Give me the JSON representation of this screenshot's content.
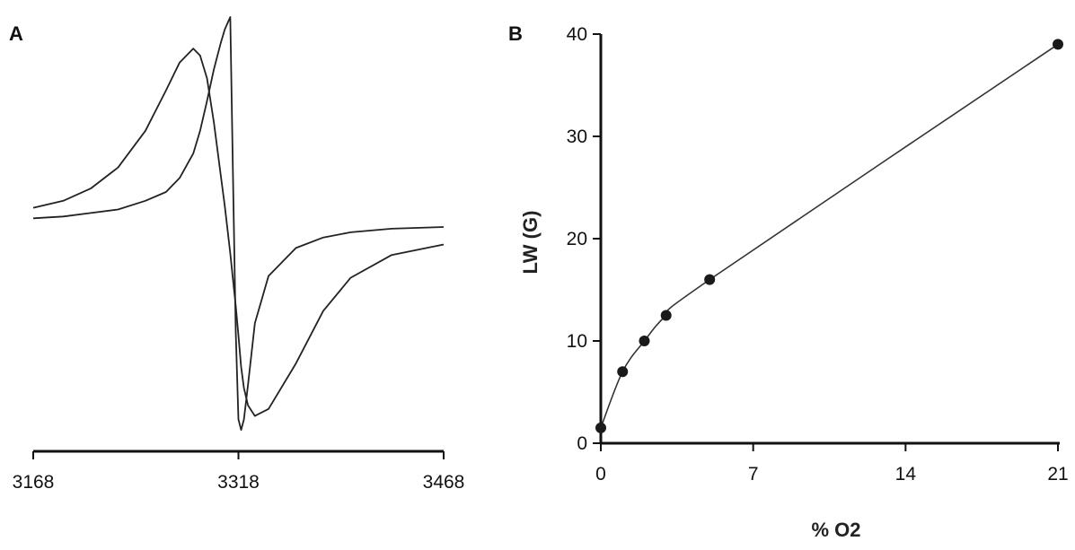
{
  "chart_data": [
    {
      "panel": "A",
      "type": "line",
      "x": [
        3168,
        3190,
        3210,
        3230,
        3250,
        3265,
        3275,
        3285,
        3290,
        3295,
        3300,
        3305,
        3308,
        3312,
        3314,
        3316,
        3318,
        3320,
        3322,
        3325,
        3330,
        3340,
        3360,
        3380,
        3400,
        3430,
        3468
      ],
      "xticks": [
        "3168",
        "3318",
        "3468"
      ],
      "xlim": [
        3168,
        3468
      ],
      "ylim": [
        -1.25,
        1.25
      ],
      "series": [
        {
          "values": [
            0.05,
            0.06,
            0.08,
            0.1,
            0.15,
            0.2,
            0.28,
            0.42,
            0.55,
            0.72,
            0.9,
            1.05,
            1.13,
            1.2,
            0.3,
            -0.6,
            -1.1,
            -1.16,
            -1.1,
            -0.9,
            -0.55,
            -0.28,
            -0.12,
            -0.06,
            -0.03,
            -0.01,
            0.0
          ]
        },
        {
          "values": [
            0.11,
            0.15,
            0.22,
            0.34,
            0.55,
            0.78,
            0.94,
            1.02,
            0.98,
            0.85,
            0.6,
            0.3,
            0.12,
            -0.15,
            -0.3,
            -0.45,
            -0.62,
            -0.8,
            -0.92,
            -1.02,
            -1.08,
            -1.04,
            -0.78,
            -0.48,
            -0.29,
            -0.16,
            -0.1
          ]
        }
      ]
    },
    {
      "panel": "B",
      "type": "line",
      "x": [
        0,
        1,
        2,
        3,
        5,
        21
      ],
      "values": [
        1.5,
        7,
        10,
        12.5,
        16,
        39
      ],
      "xlabel": "% O2",
      "ylabel": "LW (G)",
      "xlim": [
        0,
        21
      ],
      "ylim": [
        0,
        40
      ],
      "xticks": [
        "0",
        "7",
        "14",
        "21"
      ],
      "yticks": [
        "0",
        "10",
        "20",
        "30",
        "40"
      ],
      "markers": true
    }
  ]
}
